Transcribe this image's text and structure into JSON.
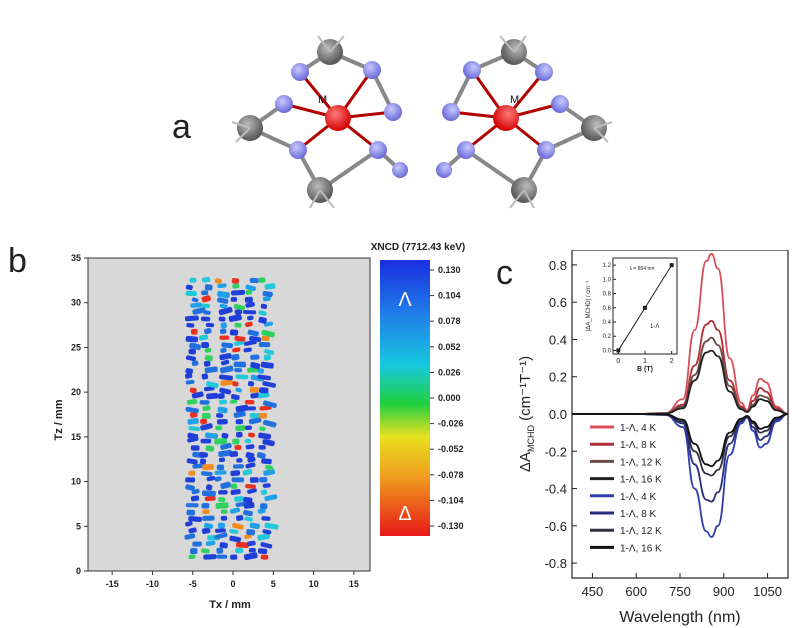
{
  "panel_a": {
    "letter": "a",
    "metal_label_left": "M",
    "metal_label_right": "M"
  },
  "panel_b": {
    "letter": "b",
    "xlabel": "Tx / mm",
    "ylabel": "Tz / mm",
    "xticks": [
      "-15",
      "-10",
      "-5",
      "0",
      "5",
      "10",
      "15"
    ],
    "yticks": [
      "0",
      "5",
      "10",
      "15",
      "20",
      "25",
      "30",
      "35"
    ],
    "colorbar_title": "XNCD (7712.43 keV)",
    "colorbar_ticks": [
      "0.130",
      "0.104",
      "0.078",
      "0.052",
      "0.026",
      "0.000",
      "-0.026",
      "-0.052",
      "-0.078",
      "-0.104",
      "-0.130"
    ],
    "colorbar_top_symbol": "Λ",
    "colorbar_bottom_symbol": "Δ"
  },
  "panel_c": {
    "letter": "c",
    "xlabel": "Wavelength (nm)",
    "ylabel": "ΔA_MCHD (cm⁻¹T⁻¹)",
    "ylabel_main": "ΔA",
    "ylabel_sub": "MCHD",
    "ylabel_units": " (cm⁻¹T⁻¹)",
    "xticks": [
      "450",
      "600",
      "750",
      "900",
      "1050"
    ],
    "yticks": [
      "0.8",
      "0.6",
      "0.4",
      "0.2",
      "0.0",
      "-0.2",
      "-0.4",
      "-0.6",
      "-0.8"
    ],
    "legend": [
      {
        "label": "1-Λ, 4 K",
        "color": "#d9505a"
      },
      {
        "label": "1-Λ, 8 K",
        "color": "#b0303a"
      },
      {
        "label": "1-Λ, 12 K",
        "color": "#6b4a48"
      },
      {
        "label": "1-Λ, 16 K",
        "color": "#222222"
      },
      {
        "label": "1-Λ, 4 K",
        "color": "#2f3fb0"
      },
      {
        "label": "1-Λ, 8 K",
        "color": "#2a2e80"
      },
      {
        "label": "1-Λ, 12 K",
        "color": "#303040"
      },
      {
        "label": "1-Λ, 16 K",
        "color": "#111111"
      }
    ],
    "inset": {
      "xlabel": "B (T)",
      "ylabel": "|ΔA_MCHD| / cm⁻¹",
      "annotation": "λ = 854 nm",
      "legend": "1-Λ",
      "xticks": [
        "0",
        "1",
        "2"
      ],
      "yticks": [
        "0.0",
        "0.2",
        "0.4",
        "0.6",
        "0.8",
        "1.0",
        "1.2"
      ]
    }
  },
  "chart_data": [
    {
      "type": "heatmap",
      "title": "",
      "xlabel": "Tx / mm",
      "ylabel": "Tz / mm",
      "xlim": [
        -18,
        17
      ],
      "ylim": [
        0,
        35
      ],
      "colorbar": {
        "title": "XNCD (7712.43 keV)",
        "range": [
          -0.13,
          0.13
        ]
      },
      "grid": false
    },
    {
      "type": "line",
      "title": "",
      "xlabel": "Wavelength (nm)",
      "ylabel": "ΔA_MCHD (cm⁻¹T⁻¹)",
      "xlim": [
        380,
        1120
      ],
      "ylim": [
        -0.88,
        0.88
      ],
      "x": [
        380,
        600,
        700,
        760,
        800,
        840,
        858,
        880,
        920,
        960,
        980,
        1000,
        1025,
        1045,
        1080,
        1120
      ],
      "series": [
        {
          "name": "1-Λ, 4 K",
          "color": "#d9505a",
          "values": [
            0,
            0,
            0.005,
            0.08,
            0.45,
            0.82,
            0.86,
            0.78,
            0.3,
            0.06,
            0.02,
            0.1,
            0.19,
            0.17,
            0.04,
            0
          ]
        },
        {
          "name": "1-Λ, 8 K",
          "color": "#b0303a",
          "values": [
            0,
            0,
            0.004,
            0.05,
            0.26,
            0.48,
            0.5,
            0.45,
            0.18,
            0.04,
            0.015,
            0.07,
            0.14,
            0.12,
            0.03,
            0
          ]
        },
        {
          "name": "1-Λ, 12 K",
          "color": "#6b4a48",
          "values": [
            0,
            0,
            0.003,
            0.04,
            0.21,
            0.39,
            0.41,
            0.37,
            0.15,
            0.03,
            0.012,
            0.05,
            0.1,
            0.09,
            0.02,
            0
          ]
        },
        {
          "name": "1-Λ, 16 K",
          "color": "#222222",
          "values": [
            0,
            0,
            0.002,
            0.03,
            0.18,
            0.33,
            0.34,
            0.31,
            0.12,
            0.025,
            0.01,
            0.04,
            0.08,
            0.07,
            0.02,
            0
          ]
        },
        {
          "name": "1-Λ, 4 K",
          "color": "#2f3fb0",
          "values": [
            0,
            0,
            -0.005,
            -0.07,
            -0.4,
            -0.63,
            -0.66,
            -0.6,
            -0.22,
            -0.05,
            -0.02,
            -0.09,
            -0.18,
            -0.16,
            -0.04,
            0
          ]
        },
        {
          "name": "1-Λ, 8 K",
          "color": "#2a2e80",
          "values": [
            0,
            0,
            -0.004,
            -0.05,
            -0.27,
            -0.46,
            -0.47,
            -0.42,
            -0.16,
            -0.04,
            -0.015,
            -0.07,
            -0.14,
            -0.12,
            -0.03,
            0
          ]
        },
        {
          "name": "1-Λ, 12 K",
          "color": "#303040",
          "values": [
            0,
            0,
            -0.003,
            -0.04,
            -0.2,
            -0.32,
            -0.33,
            -0.3,
            -0.12,
            -0.03,
            -0.012,
            -0.05,
            -0.1,
            -0.09,
            -0.02,
            0
          ]
        },
        {
          "name": "1-Λ, 16 K",
          "color": "#111111",
          "values": [
            0,
            0,
            -0.002,
            -0.03,
            -0.16,
            -0.27,
            -0.28,
            -0.25,
            -0.1,
            -0.025,
            -0.01,
            -0.04,
            -0.08,
            -0.07,
            -0.02,
            0
          ]
        }
      ],
      "grid": false
    },
    {
      "type": "scatter",
      "title": "",
      "xlabel": "B (T)",
      "ylabel": "|ΔA_MCHD| / cm⁻¹",
      "annotation": "λ = 854 nm",
      "xlim": [
        -0.2,
        2.2
      ],
      "ylim": [
        -0.05,
        1.3
      ],
      "x": [
        0,
        1,
        2
      ],
      "series": [
        {
          "name": "1-Λ",
          "values": [
            0.0,
            0.6,
            1.2
          ]
        }
      ],
      "fit_line": true
    }
  ]
}
